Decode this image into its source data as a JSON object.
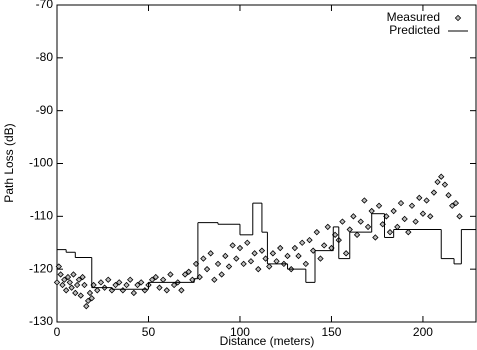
{
  "chart_data": {
    "type": "scatter",
    "xlabel": "Distance (meters)",
    "ylabel": "Path Loss (dB)",
    "xlim": [
      0,
      229
    ],
    "ylim": [
      -130,
      -70
    ],
    "xticks": [
      0,
      50,
      100,
      150,
      200
    ],
    "yticks": [
      -130,
      -120,
      -110,
      -100,
      -90,
      -80,
      -70
    ],
    "legend": "upper right",
    "series": [
      {
        "name": "Measured",
        "type": "scatter",
        "color": "#000000",
        "x": [
          0,
          1,
          2,
          3,
          4,
          5,
          6,
          7,
          8,
          9,
          10,
          11,
          12,
          13,
          14,
          15,
          16,
          17,
          18,
          19,
          20,
          22,
          24,
          26,
          28,
          30,
          32,
          34,
          36,
          38,
          40,
          42,
          44,
          46,
          48,
          50,
          52,
          54,
          56,
          58,
          60,
          62,
          64,
          66,
          68,
          70,
          72,
          74,
          76,
          78,
          80,
          82,
          84,
          86,
          88,
          90,
          92,
          94,
          96,
          98,
          100,
          102,
          104,
          106,
          108,
          110,
          112,
          114,
          116,
          118,
          120,
          122,
          124,
          126,
          128,
          130,
          132,
          134,
          136,
          138,
          140,
          142,
          144,
          146,
          148,
          150,
          152,
          154,
          156,
          158,
          160,
          162,
          164,
          166,
          168,
          170,
          172,
          174,
          176,
          178,
          180,
          182,
          184,
          186,
          188,
          190,
          192,
          194,
          196,
          198,
          200,
          202,
          204,
          206,
          208,
          210,
          212,
          214,
          216,
          218,
          220
        ],
        "values": [
          -122.5,
          -119.5,
          -121,
          -123,
          -122,
          -124,
          -121.5,
          -122.5,
          -123.5,
          -121,
          -124.5,
          -123,
          -122,
          -125,
          -121.5,
          -123,
          -127,
          -126,
          -124.5,
          -125.5,
          -123,
          -124,
          -122.5,
          -123.5,
          -122,
          -124,
          -123,
          -122.5,
          -124,
          -123,
          -122,
          -124.5,
          -123,
          -122.5,
          -124,
          -123,
          -122,
          -121.5,
          -123.5,
          -122,
          -124,
          -121,
          -123,
          -122.5,
          -124,
          -121,
          -120.5,
          -122,
          -119,
          -121.5,
          -118,
          -120,
          -117,
          -122,
          -119,
          -121,
          -117.5,
          -119.5,
          -115.5,
          -118,
          -116,
          -119,
          -115,
          -118.5,
          -117,
          -120,
          -116.5,
          -118,
          -119.5,
          -117,
          -118.5,
          -116,
          -119,
          -117.5,
          -120,
          -116,
          -117.5,
          -115,
          -119,
          -114.5,
          -116.5,
          -113,
          -118,
          -115.5,
          -112,
          -116,
          -113.5,
          -114.5,
          -111,
          -117,
          -112.5,
          -110,
          -113.5,
          -111,
          -107,
          -112,
          -109,
          -114,
          -108,
          -111.5,
          -110,
          -113,
          -109,
          -112,
          -107.5,
          -110.5,
          -113,
          -108,
          -111,
          -106.5,
          -109.5,
          -107,
          -110,
          -105.5,
          -103.5,
          -102.5,
          -104,
          -106,
          -108,
          -107.5,
          -110
        ]
      },
      {
        "name": "Predicted",
        "type": "line",
        "step": "post",
        "color": "#000000",
        "x": [
          0,
          5,
          10,
          19,
          30,
          50,
          75,
          77,
          88,
          100,
          107,
          112,
          115,
          126,
          136,
          141,
          151,
          154,
          160,
          172,
          179,
          184,
          210,
          217,
          221,
          229
        ],
        "values": [
          -116.3,
          -116.8,
          -117.8,
          -123.5,
          -123.8,
          -122.5,
          -121.8,
          -111.2,
          -111.5,
          -113.5,
          -107.5,
          -113,
          -119,
          -120,
          -122.5,
          -116.5,
          -112,
          -118,
          -113,
          -109.5,
          -114,
          -112.5,
          -118,
          -119,
          -112.5,
          -112.5
        ]
      }
    ]
  }
}
